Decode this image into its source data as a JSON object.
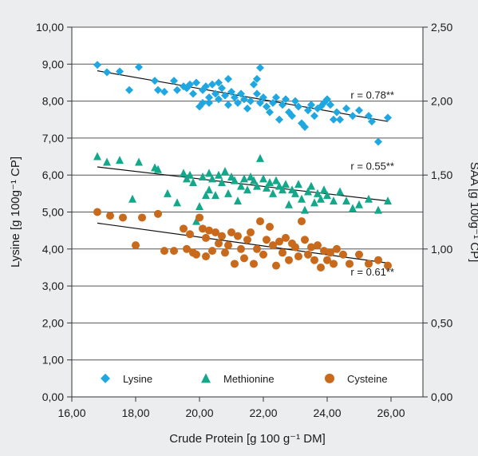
{
  "colors": {
    "background": "#ecedee",
    "plot_background": "#ffffff",
    "lysine": "#1ea7e1",
    "methionine": "#13a889",
    "cysteine": "#c8691c",
    "axis": "#333333",
    "grid": "#555555",
    "trend_line": "#111111"
  },
  "chart_data": {
    "type": "scatter",
    "title": "",
    "xlabel": "Crude Protein [g 100 g⁻¹ DM]",
    "ylabel": "Lysine [g 100g⁻¹ CP]",
    "y2label": "SAA [g 100g⁻¹ CP]",
    "xlim": [
      16,
      27
    ],
    "ylim": [
      0,
      10
    ],
    "y2lim": [
      0,
      2.5
    ],
    "x_ticks": [
      "16,00",
      "18,00",
      "20,00",
      "22,00",
      "24,00",
      "26,00"
    ],
    "x_tick_values": [
      16,
      18,
      20,
      22,
      24,
      26
    ],
    "y_ticks": [
      "0,00",
      "1,00",
      "2,00",
      "3,00",
      "4,00",
      "5,00",
      "6,00",
      "7,00",
      "8,00",
      "9,00",
      "10,00"
    ],
    "y_tick_values": [
      0,
      1,
      2,
      3,
      4,
      5,
      6,
      7,
      8,
      9,
      10
    ],
    "y2_ticks": [
      "0,00",
      "0,50",
      "1,00",
      "1,50",
      "2,00",
      "2,50"
    ],
    "y2_tick_values": [
      0,
      0.5,
      1,
      1.5,
      2,
      2.5
    ],
    "grid": true,
    "legend_position": "bottom-inside",
    "legend": [
      "Lysine",
      "Methionine",
      "Cysteine"
    ],
    "series": [
      {
        "name": "Lysine",
        "marker": "diamond",
        "axis": "left",
        "points": [
          [
            16.8,
            8.98
          ],
          [
            17.1,
            8.78
          ],
          [
            17.5,
            8.8
          ],
          [
            17.8,
            8.3
          ],
          [
            18.1,
            8.92
          ],
          [
            18.6,
            8.55
          ],
          [
            18.7,
            8.3
          ],
          [
            18.9,
            8.25
          ],
          [
            19.2,
            8.55
          ],
          [
            19.3,
            8.3
          ],
          [
            19.5,
            8.4
          ],
          [
            19.6,
            8.35
          ],
          [
            19.7,
            8.45
          ],
          [
            19.8,
            8.2
          ],
          [
            19.9,
            8.5
          ],
          [
            20.0,
            7.85
          ],
          [
            20.1,
            8.3
          ],
          [
            20.1,
            7.95
          ],
          [
            20.2,
            8.4
          ],
          [
            20.3,
            8.1
          ],
          [
            20.3,
            7.95
          ],
          [
            20.4,
            8.45
          ],
          [
            20.5,
            8.2
          ],
          [
            20.6,
            8.5
          ],
          [
            20.6,
            8.05
          ],
          [
            20.7,
            8.35
          ],
          [
            20.8,
            8.15
          ],
          [
            20.9,
            8.6
          ],
          [
            20.9,
            7.9
          ],
          [
            21.0,
            8.25
          ],
          [
            21.1,
            8.1
          ],
          [
            21.2,
            7.95
          ],
          [
            21.3,
            8.2
          ],
          [
            21.4,
            8.05
          ],
          [
            21.5,
            7.8
          ],
          [
            21.6,
            8.0
          ],
          [
            21.7,
            8.45
          ],
          [
            21.8,
            8.6
          ],
          [
            21.8,
            8.2
          ],
          [
            21.9,
            8.9
          ],
          [
            21.9,
            7.95
          ],
          [
            22.0,
            8.1
          ],
          [
            22.1,
            7.85
          ],
          [
            22.2,
            7.7
          ],
          [
            22.3,
            7.95
          ],
          [
            22.4,
            8.1
          ],
          [
            22.5,
            7.5
          ],
          [
            22.6,
            7.9
          ],
          [
            22.7,
            8.05
          ],
          [
            22.8,
            7.7
          ],
          [
            22.9,
            7.6
          ],
          [
            23.0,
            8.0
          ],
          [
            23.1,
            7.85
          ],
          [
            23.2,
            7.4
          ],
          [
            23.3,
            7.3
          ],
          [
            23.4,
            7.75
          ],
          [
            23.5,
            7.9
          ],
          [
            23.6,
            7.6
          ],
          [
            23.7,
            7.8
          ],
          [
            23.8,
            7.85
          ],
          [
            23.9,
            7.95
          ],
          [
            24.0,
            8.05
          ],
          [
            24.1,
            7.9
          ],
          [
            24.2,
            7.5
          ],
          [
            24.3,
            7.7
          ],
          [
            24.4,
            7.5
          ],
          [
            24.6,
            7.8
          ],
          [
            24.8,
            7.6
          ],
          [
            25.0,
            7.75
          ],
          [
            25.3,
            7.6
          ],
          [
            25.4,
            7.45
          ],
          [
            25.6,
            6.9
          ],
          [
            25.9,
            7.55
          ]
        ],
        "fit": {
          "x": [
            16.8,
            25.9
          ],
          "y": [
            8.82,
            7.45
          ]
        },
        "r_label": "r = 0.78**"
      },
      {
        "name": "Methionine",
        "marker": "triangle",
        "axis": "left",
        "points": [
          [
            16.8,
            6.5
          ],
          [
            17.1,
            6.35
          ],
          [
            17.5,
            6.4
          ],
          [
            17.9,
            5.35
          ],
          [
            18.1,
            6.35
          ],
          [
            18.6,
            6.2
          ],
          [
            18.7,
            6.15
          ],
          [
            19.0,
            5.5
          ],
          [
            19.3,
            5.25
          ],
          [
            19.5,
            6.05
          ],
          [
            19.6,
            5.9
          ],
          [
            19.7,
            6.0
          ],
          [
            19.8,
            5.8
          ],
          [
            19.9,
            4.75
          ],
          [
            20.0,
            5.15
          ],
          [
            20.1,
            5.95
          ],
          [
            20.2,
            5.45
          ],
          [
            20.3,
            6.05
          ],
          [
            20.3,
            5.6
          ],
          [
            20.4,
            5.9
          ],
          [
            20.5,
            5.45
          ],
          [
            20.6,
            6.0
          ],
          [
            20.7,
            5.8
          ],
          [
            20.8,
            6.1
          ],
          [
            20.9,
            5.5
          ],
          [
            21.0,
            5.95
          ],
          [
            21.1,
            5.85
          ],
          [
            21.2,
            5.3
          ],
          [
            21.3,
            5.7
          ],
          [
            21.4,
            5.9
          ],
          [
            21.5,
            5.6
          ],
          [
            21.6,
            5.95
          ],
          [
            21.7,
            5.85
          ],
          [
            21.8,
            5.7
          ],
          [
            21.9,
            6.45
          ],
          [
            22.0,
            5.9
          ],
          [
            22.1,
            5.65
          ],
          [
            22.2,
            5.8
          ],
          [
            22.3,
            5.5
          ],
          [
            22.4,
            5.85
          ],
          [
            22.5,
            5.7
          ],
          [
            22.6,
            5.6
          ],
          [
            22.7,
            5.75
          ],
          [
            22.8,
            5.2
          ],
          [
            22.9,
            5.6
          ],
          [
            23.0,
            5.5
          ],
          [
            23.1,
            5.75
          ],
          [
            23.2,
            5.35
          ],
          [
            23.3,
            5.05
          ],
          [
            23.4,
            5.55
          ],
          [
            23.5,
            5.7
          ],
          [
            23.6,
            5.25
          ],
          [
            23.7,
            5.5
          ],
          [
            23.8,
            5.35
          ],
          [
            23.9,
            5.6
          ],
          [
            24.0,
            5.45
          ],
          [
            24.2,
            5.3
          ],
          [
            24.4,
            5.55
          ],
          [
            24.6,
            5.3
          ],
          [
            24.8,
            5.1
          ],
          [
            25.0,
            5.2
          ],
          [
            25.3,
            5.35
          ],
          [
            25.6,
            5.05
          ],
          [
            25.9,
            5.3
          ]
        ],
        "fit": {
          "x": [
            16.8,
            25.9
          ],
          "y": [
            6.22,
            5.3
          ]
        },
        "r_label": "r = 0.55**"
      },
      {
        "name": "Cysteine",
        "marker": "circle",
        "axis": "left",
        "points": [
          [
            16.8,
            5.0
          ],
          [
            17.2,
            4.9
          ],
          [
            17.6,
            4.85
          ],
          [
            18.0,
            4.1
          ],
          [
            18.2,
            4.85
          ],
          [
            18.7,
            4.95
          ],
          [
            18.9,
            3.95
          ],
          [
            19.2,
            3.95
          ],
          [
            19.5,
            4.55
          ],
          [
            19.6,
            4.0
          ],
          [
            19.7,
            4.4
          ],
          [
            19.8,
            3.9
          ],
          [
            19.9,
            3.85
          ],
          [
            20.0,
            4.85
          ],
          [
            20.1,
            4.55
          ],
          [
            20.2,
            3.8
          ],
          [
            20.2,
            4.3
          ],
          [
            20.3,
            4.5
          ],
          [
            20.4,
            3.95
          ],
          [
            20.5,
            4.45
          ],
          [
            20.6,
            4.15
          ],
          [
            20.7,
            4.35
          ],
          [
            20.8,
            3.9
          ],
          [
            20.9,
            4.1
          ],
          [
            21.0,
            4.45
          ],
          [
            21.1,
            3.6
          ],
          [
            21.2,
            4.35
          ],
          [
            21.3,
            4.0
          ],
          [
            21.4,
            3.75
          ],
          [
            21.5,
            4.25
          ],
          [
            21.6,
            4.45
          ],
          [
            21.7,
            3.6
          ],
          [
            21.8,
            4.0
          ],
          [
            21.9,
            4.75
          ],
          [
            22.0,
            3.85
          ],
          [
            22.1,
            4.25
          ],
          [
            22.2,
            4.6
          ],
          [
            22.3,
            4.1
          ],
          [
            22.4,
            3.55
          ],
          [
            22.5,
            4.2
          ],
          [
            22.6,
            3.9
          ],
          [
            22.7,
            4.3
          ],
          [
            22.8,
            3.7
          ],
          [
            22.9,
            4.15
          ],
          [
            23.0,
            4.05
          ],
          [
            23.1,
            3.8
          ],
          [
            23.2,
            4.75
          ],
          [
            23.3,
            4.25
          ],
          [
            23.4,
            3.85
          ],
          [
            23.5,
            4.05
          ],
          [
            23.6,
            3.7
          ],
          [
            23.7,
            4.1
          ],
          [
            23.8,
            3.5
          ],
          [
            23.9,
            3.95
          ],
          [
            24.0,
            3.7
          ],
          [
            24.1,
            3.9
          ],
          [
            24.2,
            3.6
          ],
          [
            24.3,
            4.0
          ],
          [
            24.5,
            3.85
          ],
          [
            24.7,
            3.6
          ],
          [
            25.0,
            3.85
          ],
          [
            25.3,
            3.6
          ],
          [
            25.6,
            3.7
          ],
          [
            25.9,
            3.55
          ]
        ],
        "fit": {
          "x": [
            16.8,
            25.9
          ],
          "y": [
            4.7,
            3.62
          ]
        },
        "r_label": "r = 0.61**"
      }
    ]
  }
}
